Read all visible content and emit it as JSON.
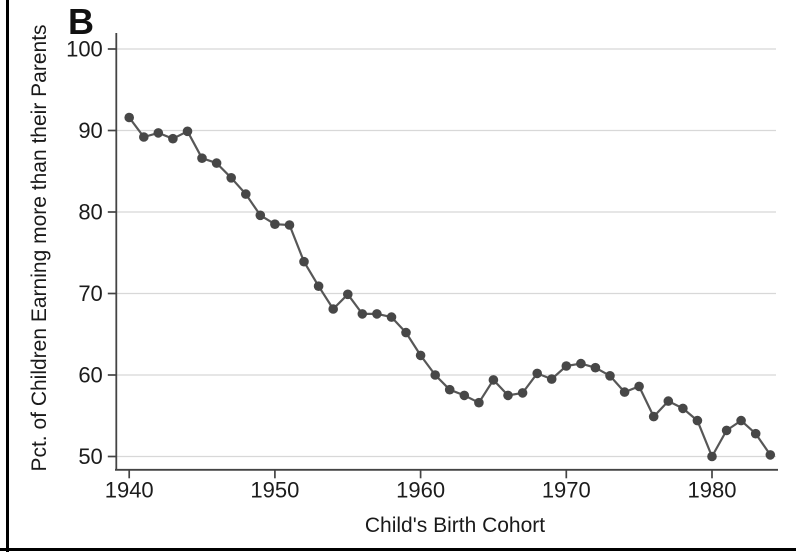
{
  "panel_label": "B",
  "colors": {
    "marker": "#474747",
    "line": "#575757",
    "grid": "#d8d8d8",
    "axis": "#444444",
    "text": "#1c1c1c",
    "border": "#000000",
    "background": "#ffffff"
  },
  "chart_data": {
    "type": "line",
    "title": "",
    "xlabel": "Child's Birth Cohort",
    "ylabel": "Pct. of Children Earning more than their Parents",
    "x": [
      1940,
      1941,
      1942,
      1943,
      1944,
      1945,
      1946,
      1947,
      1948,
      1949,
      1950,
      1951,
      1952,
      1953,
      1954,
      1955,
      1956,
      1957,
      1958,
      1959,
      1960,
      1961,
      1962,
      1963,
      1964,
      1965,
      1966,
      1967,
      1968,
      1969,
      1970,
      1971,
      1972,
      1973,
      1974,
      1975,
      1976,
      1977,
      1978,
      1979,
      1980,
      1981,
      1982,
      1983,
      1984
    ],
    "values": [
      91.6,
      89.2,
      89.7,
      89.0,
      89.9,
      86.6,
      86.0,
      84.2,
      82.2,
      79.6,
      78.5,
      78.4,
      73.9,
      70.9,
      68.1,
      69.9,
      67.5,
      67.5,
      67.1,
      65.2,
      62.4,
      60.0,
      58.2,
      57.5,
      56.6,
      59.4,
      57.5,
      57.8,
      60.2,
      59.5,
      61.1,
      61.4,
      60.9,
      59.9,
      57.9,
      58.6,
      54.9,
      56.8,
      55.9,
      54.4,
      50.0,
      53.2,
      54.4,
      52.8,
      50.2
    ],
    "xticks": [
      1940,
      1950,
      1960,
      1970,
      1980
    ],
    "yticks": [
      50,
      60,
      70,
      80,
      90,
      100
    ],
    "xlim": [
      1939,
      1985
    ],
    "ylim": [
      50,
      100
    ],
    "grid": "horizontal",
    "legend": "none",
    "marker": "circle"
  }
}
